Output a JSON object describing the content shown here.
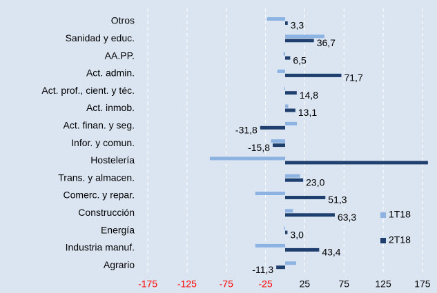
{
  "chart_data": {
    "type": "hbar",
    "categories": [
      "Otros",
      "Sanidad y educ.",
      "AA.PP.",
      "Act. admin.",
      "Act. prof., cient. y téc.",
      "Act. inmob.",
      "Act. finan. y seg.",
      "Infor. y comun.",
      "Hostelería",
      "Trans. y almacen.",
      "Comerc. y repar.",
      "Construcción",
      "Energía",
      "Industria manuf.",
      "Agrario"
    ],
    "series": [
      {
        "name": "1T18",
        "color": "#8db3e2",
        "values": [
          -23,
          50,
          -2,
          -10,
          -1,
          4,
          15,
          -18,
          -96,
          19,
          -38,
          10,
          -1,
          -38,
          14
        ]
      },
      {
        "name": "2T18",
        "color": "#1f3f6f",
        "values": [
          3.3,
          36.7,
          6.5,
          71.7,
          14.8,
          13.1,
          -31.8,
          -15.8,
          182,
          23.0,
          51.3,
          63.3,
          3.0,
          43.4,
          -11.3
        ],
        "value_labels": [
          "3,3",
          "36,7",
          "6,5",
          "71,7",
          "14,8",
          "13,1",
          "-31,8",
          "-15,8",
          null,
          "23,0",
          "51,3",
          "63,3",
          "3,0",
          "43,4",
          "-11,3"
        ]
      }
    ],
    "xlim": [
      -183,
      183
    ],
    "xticks": [
      -175,
      -125,
      -75,
      -25,
      25,
      75,
      125,
      175
    ],
    "negative_tick_color": "#ff0000",
    "grid": true
  }
}
